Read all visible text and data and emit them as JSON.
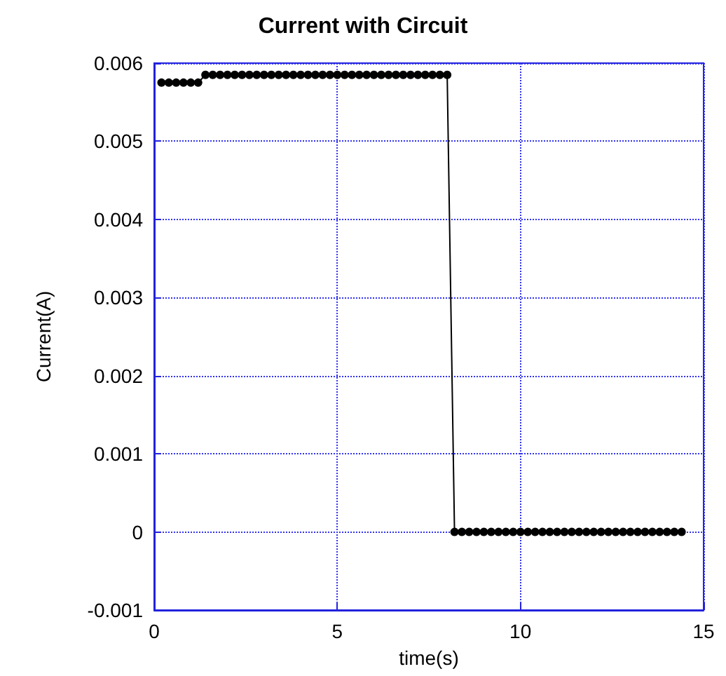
{
  "chart_data": {
    "type": "line",
    "title": "Current with Circuit",
    "xlabel": "time(s)",
    "ylabel": "Current(A)",
    "x": [
      0.2,
      0.4,
      0.6,
      0.8,
      1.0,
      1.2,
      1.4,
      1.6,
      1.8,
      2.0,
      2.2,
      2.4,
      2.6,
      2.8,
      3.0,
      3.2,
      3.4,
      3.6,
      3.8,
      4.0,
      4.2,
      4.4,
      4.6,
      4.8,
      5.0,
      5.2,
      5.4,
      5.6,
      5.8,
      6.0,
      6.2,
      6.4,
      6.6,
      6.8,
      7.0,
      7.2,
      7.4,
      7.6,
      7.8,
      8.0,
      8.2,
      8.4,
      8.6,
      8.8,
      9.0,
      9.2,
      9.4,
      9.6,
      9.8,
      10.0,
      10.2,
      10.4,
      10.6,
      10.8,
      11.0,
      11.2,
      11.4,
      11.6,
      11.8,
      12.0,
      12.2,
      12.4,
      12.6,
      12.8,
      13.0,
      13.2,
      13.4,
      13.6,
      13.8,
      14.0,
      14.2,
      14.4
    ],
    "series": [
      {
        "color": "#000000",
        "values": [
          0.00575,
          0.00575,
          0.00575,
          0.00575,
          0.00575,
          0.00575,
          0.00585,
          0.00585,
          0.00585,
          0.00585,
          0.00585,
          0.00585,
          0.00585,
          0.00585,
          0.00585,
          0.00585,
          0.00585,
          0.00585,
          0.00585,
          0.00585,
          0.00585,
          0.00585,
          0.00585,
          0.00585,
          0.00585,
          0.00585,
          0.00585,
          0.00585,
          0.00585,
          0.00585,
          0.00585,
          0.00585,
          0.00585,
          0.00585,
          0.00585,
          0.00585,
          0.00585,
          0.00585,
          0.00585,
          0.00585,
          0,
          0,
          0,
          0,
          0,
          0,
          0,
          0,
          0,
          0,
          0,
          0,
          0,
          0,
          0,
          0,
          0,
          0,
          0,
          0,
          0,
          0,
          0,
          0,
          0,
          0,
          0,
          0,
          0,
          0,
          0,
          0
        ]
      }
    ],
    "xlim": [
      0,
      15
    ],
    "xticks": [
      0,
      5,
      10,
      15
    ],
    "ylim": [
      -0.001,
      0.006
    ],
    "yticks": [
      -0.001,
      0,
      0.001,
      0.002,
      0.003,
      0.004,
      0.005,
      0.006
    ],
    "grid": true,
    "marker": "circle",
    "line_style": "solid"
  }
}
